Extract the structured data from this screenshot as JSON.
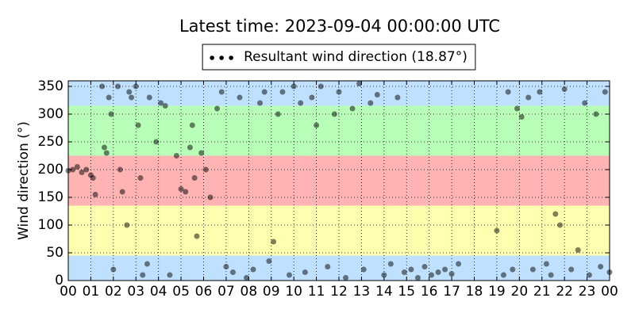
{
  "chart_data": {
    "type": "scatter",
    "title": "Latest time: 2023-09-04 00:00:00 UTC",
    "y_label": "Wind direction (°)",
    "xlim": [
      0,
      24
    ],
    "ylim": [
      0,
      360
    ],
    "xticks": [
      {
        "value": 0,
        "label": "00"
      },
      {
        "value": 1,
        "label": "01"
      },
      {
        "value": 2,
        "label": "02"
      },
      {
        "value": 3,
        "label": "03"
      },
      {
        "value": 4,
        "label": "04"
      },
      {
        "value": 5,
        "label": "05"
      },
      {
        "value": 6,
        "label": "06"
      },
      {
        "value": 7,
        "label": "07"
      },
      {
        "value": 8,
        "label": "08"
      },
      {
        "value": 9,
        "label": "09"
      },
      {
        "value": 10,
        "label": "10"
      },
      {
        "value": 11,
        "label": "11"
      },
      {
        "value": 12,
        "label": "12"
      },
      {
        "value": 13,
        "label": "13"
      },
      {
        "value": 14,
        "label": "14"
      },
      {
        "value": 15,
        "label": "15"
      },
      {
        "value": 16,
        "label": "16"
      },
      {
        "value": 17,
        "label": "17"
      },
      {
        "value": 18,
        "label": "18"
      },
      {
        "value": 19,
        "label": "19"
      },
      {
        "value": 20,
        "label": "20"
      },
      {
        "value": 21,
        "label": "21"
      },
      {
        "value": 22,
        "label": "22"
      },
      {
        "value": 23,
        "label": "23"
      },
      {
        "value": 24,
        "label": "00"
      }
    ],
    "yticks": [
      0,
      50,
      100,
      150,
      200,
      250,
      300,
      350
    ],
    "grid": true,
    "bands": [
      {
        "from": 0,
        "to": 45,
        "color": "#bfe0ff"
      },
      {
        "from": 45,
        "to": 135,
        "color": "#ffffb0"
      },
      {
        "from": 135,
        "to": 225,
        "color": "#ffb3b3"
      },
      {
        "from": 225,
        "to": 315,
        "color": "#b8ffb8"
      },
      {
        "from": 315,
        "to": 360,
        "color": "#bfe0ff"
      }
    ],
    "legend": "upper center",
    "point_opacity": 0.5,
    "series": [
      {
        "name": "Resultant wind direction (18.87°)",
        "color": "#000000",
        "x": [
          0.0,
          0.2,
          0.4,
          0.6,
          0.8,
          1.0,
          1.1,
          1.2,
          1.5,
          1.6,
          1.7,
          1.8,
          1.9,
          2.0,
          2.2,
          2.3,
          2.4,
          2.6,
          2.7,
          2.8,
          3.0,
          3.1,
          3.2,
          3.3,
          3.5,
          3.6,
          3.9,
          4.1,
          4.3,
          4.5,
          4.8,
          5.0,
          5.2,
          5.4,
          5.5,
          5.6,
          5.7,
          5.9,
          6.1,
          6.3,
          6.6,
          6.8,
          7.0,
          7.3,
          7.6,
          7.9,
          8.2,
          8.5,
          8.7,
          8.9,
          9.1,
          9.3,
          9.5,
          9.8,
          10.0,
          10.3,
          10.5,
          10.8,
          11.0,
          11.2,
          11.5,
          11.8,
          12.0,
          12.3,
          12.6,
          12.9,
          13.1,
          13.4,
          13.7,
          14.0,
          14.3,
          14.6,
          14.9,
          15.2,
          15.5,
          15.8,
          16.1,
          16.4,
          16.7,
          17.0,
          17.3,
          19.0,
          19.3,
          19.5,
          19.7,
          19.9,
          20.1,
          20.4,
          20.6,
          20.9,
          21.2,
          21.4,
          21.6,
          21.8,
          22.0,
          22.3,
          22.6,
          22.9,
          23.1,
          23.4,
          23.6,
          23.8,
          24.0
        ],
        "values": [
          198,
          200,
          205,
          195,
          200,
          190,
          185,
          155,
          350,
          240,
          230,
          330,
          300,
          20,
          350,
          200,
          160,
          100,
          340,
          330,
          350,
          280,
          185,
          10,
          30,
          330,
          250,
          320,
          315,
          10,
          225,
          165,
          160,
          240,
          280,
          185,
          80,
          230,
          200,
          150,
          310,
          340,
          25,
          15,
          330,
          5,
          20,
          320,
          340,
          35,
          70,
          300,
          340,
          10,
          350,
          320,
          15,
          330,
          280,
          350,
          25,
          300,
          340,
          5,
          310,
          355,
          20,
          320,
          335,
          10,
          30,
          330,
          15,
          20,
          5,
          25,
          10,
          15,
          20,
          12,
          30,
          90,
          10,
          340,
          20,
          310,
          295,
          330,
          20,
          340,
          30,
          10,
          120,
          100,
          345,
          20,
          55,
          320,
          10,
          300,
          25,
          340,
          15
        ]
      }
    ]
  }
}
